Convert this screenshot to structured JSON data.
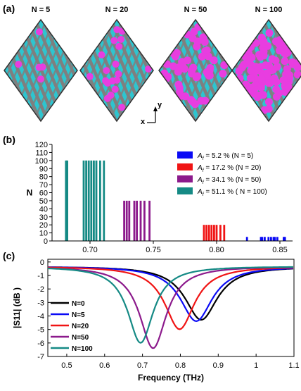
{
  "panel_a": {
    "label": "(a)",
    "titles": [
      "N = 5",
      "N = 20",
      "N = 50",
      "N = 100"
    ],
    "counts": [
      5,
      20,
      50,
      100
    ],
    "axis_y": "y",
    "axis_x": "x",
    "colors": {
      "metal": "#7f7f7f",
      "slot": "#2ec5cf",
      "defect": "#e83de0"
    }
  },
  "chart_data": [
    {
      "panel": "(b)",
      "type": "bar",
      "ylabel": "N",
      "xlabel": "",
      "xlim": [
        0.67,
        0.86
      ],
      "ylim": [
        0,
        120
      ],
      "xticks": [
        "0.70",
        "0.75",
        "0.80",
        "0.85"
      ],
      "yticks": [
        "0",
        "10",
        "20",
        "30",
        "40",
        "50",
        "60",
        "70",
        "80",
        "90",
        "100",
        "110",
        "120"
      ],
      "series": [
        {
          "name": "A_f = 5.2 % (N = 5)",
          "color": "#0a0af5",
          "height": 5,
          "x": [
            0.824,
            0.835,
            0.836,
            0.838,
            0.841,
            0.843,
            0.845,
            0.846,
            0.848,
            0.853,
            0.854
          ]
        },
        {
          "name": "A_f = 17.2 % (N = 20)",
          "color": "#f01414",
          "height": 20,
          "x": [
            0.79,
            0.792,
            0.794,
            0.796,
            0.798,
            0.8,
            0.803,
            0.806
          ]
        },
        {
          "name": "A_f = 34.1 % (N = 50)",
          "color": "#8c1a8c",
          "height": 50,
          "x": [
            0.727,
            0.729,
            0.731,
            0.735,
            0.737,
            0.74,
            0.743,
            0.747
          ]
        },
        {
          "name": "A_f = 51.1 % ( N = 100)",
          "color": "#158a85",
          "height": 100,
          "x": [
            0.681,
            0.682,
            0.695,
            0.697,
            0.699,
            0.701,
            0.703,
            0.705,
            0.708,
            0.711
          ]
        }
      ],
      "legend": [
        {
          "prefix": "A",
          "sub": "f",
          "text": " = 5.2 % (N = 5)",
          "color": "#0a0af5"
        },
        {
          "prefix": "A",
          "sub": "f",
          "text": " = 17.2 % (N = 20)",
          "color": "#f01414"
        },
        {
          "prefix": "A",
          "sub": "f",
          "text": " = 34.1 % (N = 50)",
          "color": "#8c1a8c"
        },
        {
          "prefix": "A",
          "sub": "f",
          "text": " = 51.1 % ( N = 100)",
          "color": "#158a85"
        }
      ],
      "legend_position": "top-right"
    },
    {
      "panel": "(c)",
      "type": "line",
      "xlabel": "Frequency (THz)",
      "ylabel": "|S11| (dB )",
      "xlim": [
        0.45,
        1.1
      ],
      "ylim": [
        -7,
        0.2
      ],
      "xticks": [
        "0.5",
        "0.6",
        "0.7",
        "0.8",
        "0.9",
        "1",
        "1.1"
      ],
      "yticks": [
        "0",
        "-1",
        "-2",
        "-3",
        "-4",
        "-5",
        "-6",
        "-7"
      ],
      "series": [
        {
          "name": "N=0",
          "color": "#000000",
          "f0": 0.855,
          "depth": 4.0,
          "width": 0.055
        },
        {
          "name": "N=5",
          "color": "#0a0af5",
          "f0": 0.842,
          "depth": 4.1,
          "width": 0.054
        },
        {
          "name": "N=20",
          "color": "#f01414",
          "f0": 0.798,
          "depth": 4.7,
          "width": 0.05
        },
        {
          "name": "N=50",
          "color": "#8c1a8c",
          "f0": 0.728,
          "depth": 6.1,
          "width": 0.045
        },
        {
          "name": "N=100",
          "color": "#158a85",
          "f0": 0.695,
          "depth": 5.7,
          "width": 0.043
        }
      ],
      "legend_position": "left"
    }
  ]
}
